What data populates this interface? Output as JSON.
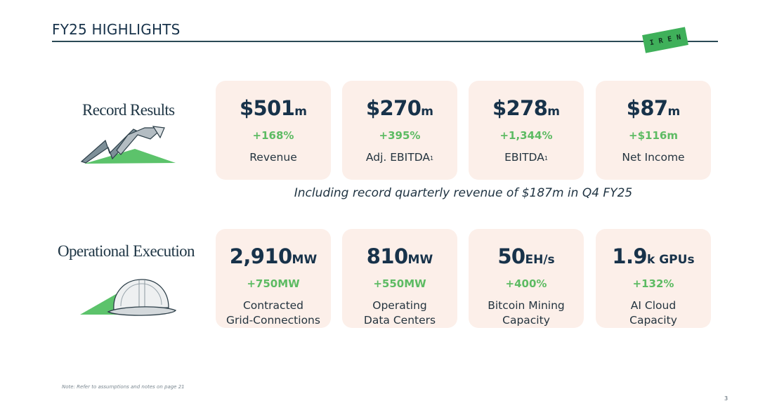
{
  "header": {
    "title": "FY25 HIGHLIGHTS",
    "logo_text": "IREN",
    "logo_color": "#3fb05a"
  },
  "record_results": {
    "label": "Record Results",
    "illustration": "rising-arrow-chart-illustration",
    "cards": [
      {
        "value": "$501",
        "unit": "m",
        "delta": "+168%",
        "desc": "Revenue",
        "sup": ""
      },
      {
        "value": "$270",
        "unit": "m",
        "delta": "+395%",
        "desc": "Adj. EBITDA",
        "sup": "1"
      },
      {
        "value": "$278",
        "unit": "m",
        "delta": "+1,344%",
        "desc": "EBITDA",
        "sup": "1"
      },
      {
        "value": "$87",
        "unit": "m",
        "delta": "+$116m",
        "desc": "Net Income",
        "sup": ""
      }
    ]
  },
  "highlight_line": "Including record quarterly revenue of $187m in Q4 FY25",
  "operational_execution": {
    "label": "Operational Execution",
    "illustration": "hard-hat-illustration",
    "cards": [
      {
        "value": "2,910",
        "unit": "MW",
        "delta": "+750MW",
        "desc_line1": "Contracted",
        "desc_line2": "Grid-Connections"
      },
      {
        "value": "810",
        "unit": "MW",
        "delta": "+550MW",
        "desc_line1": "Operating",
        "desc_line2": "Data Centers"
      },
      {
        "value": "50",
        "unit": "EH/s",
        "delta": "+400%",
        "desc_line1": "Bitcoin Mining",
        "desc_line2": "Capacity"
      },
      {
        "value": "1.9",
        "unit": "k GPUs",
        "delta": "+132%",
        "desc_line1": "AI Cloud",
        "desc_line2": "Capacity"
      }
    ]
  },
  "footer": {
    "note": "Note: Refer to assumptions and notes on page 21",
    "page_number": "3"
  },
  "colors": {
    "card_bg": "#fcefe9",
    "kpi_text": "#17324a",
    "delta_green": "#5dbb63"
  }
}
